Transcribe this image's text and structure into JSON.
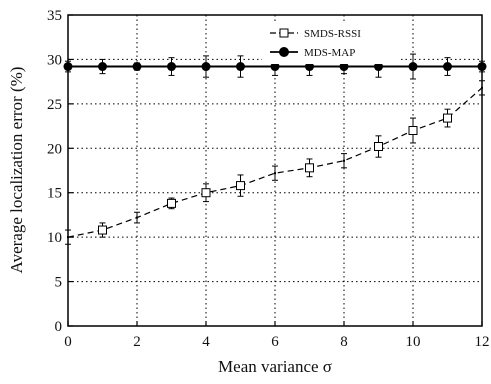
{
  "chart_data": {
    "type": "line",
    "title": "",
    "xlabel": "Mean variance σ",
    "ylabel": "Average localization error (%)",
    "xlim": [
      0,
      12
    ],
    "ylim": [
      0,
      35
    ],
    "xticks": [
      0,
      2,
      4,
      6,
      8,
      10,
      12
    ],
    "yticks": [
      0,
      5,
      10,
      15,
      20,
      25,
      30,
      35
    ],
    "grid": true,
    "legend_position": "top-right",
    "series": [
      {
        "name": "SMDS-RSSI",
        "style": "dashed-line-open-square-markers",
        "color": "#000000",
        "x": [
          0,
          1,
          2,
          3,
          4,
          5,
          6,
          7,
          8,
          9,
          10,
          11,
          12
        ],
        "y": [
          10.0,
          10.8,
          12.2,
          13.8,
          15.0,
          15.8,
          17.2,
          17.8,
          18.6,
          20.2,
          22.0,
          23.4,
          26.8
        ],
        "error": [
          0.8,
          0.8,
          0.6,
          0.6,
          1.0,
          1.2,
          0.8,
          1.0,
          0.8,
          1.2,
          1.4,
          1.0,
          0.8
        ]
      },
      {
        "name": "MDS-MAP",
        "style": "solid-line-filled-circle-markers",
        "color": "#000000",
        "x": [
          0,
          1,
          2,
          3,
          4,
          5,
          6,
          7,
          8,
          9,
          10,
          11,
          12
        ],
        "y": [
          29.2,
          29.2,
          29.2,
          29.2,
          29.2,
          29.2,
          29.2,
          29.2,
          29.2,
          29.2,
          29.2,
          29.2,
          29.2
        ],
        "error": [
          0.6,
          0.8,
          0.4,
          1.0,
          1.2,
          1.2,
          1.0,
          1.0,
          0.8,
          1.2,
          1.4,
          1.0,
          0.6
        ]
      }
    ]
  }
}
